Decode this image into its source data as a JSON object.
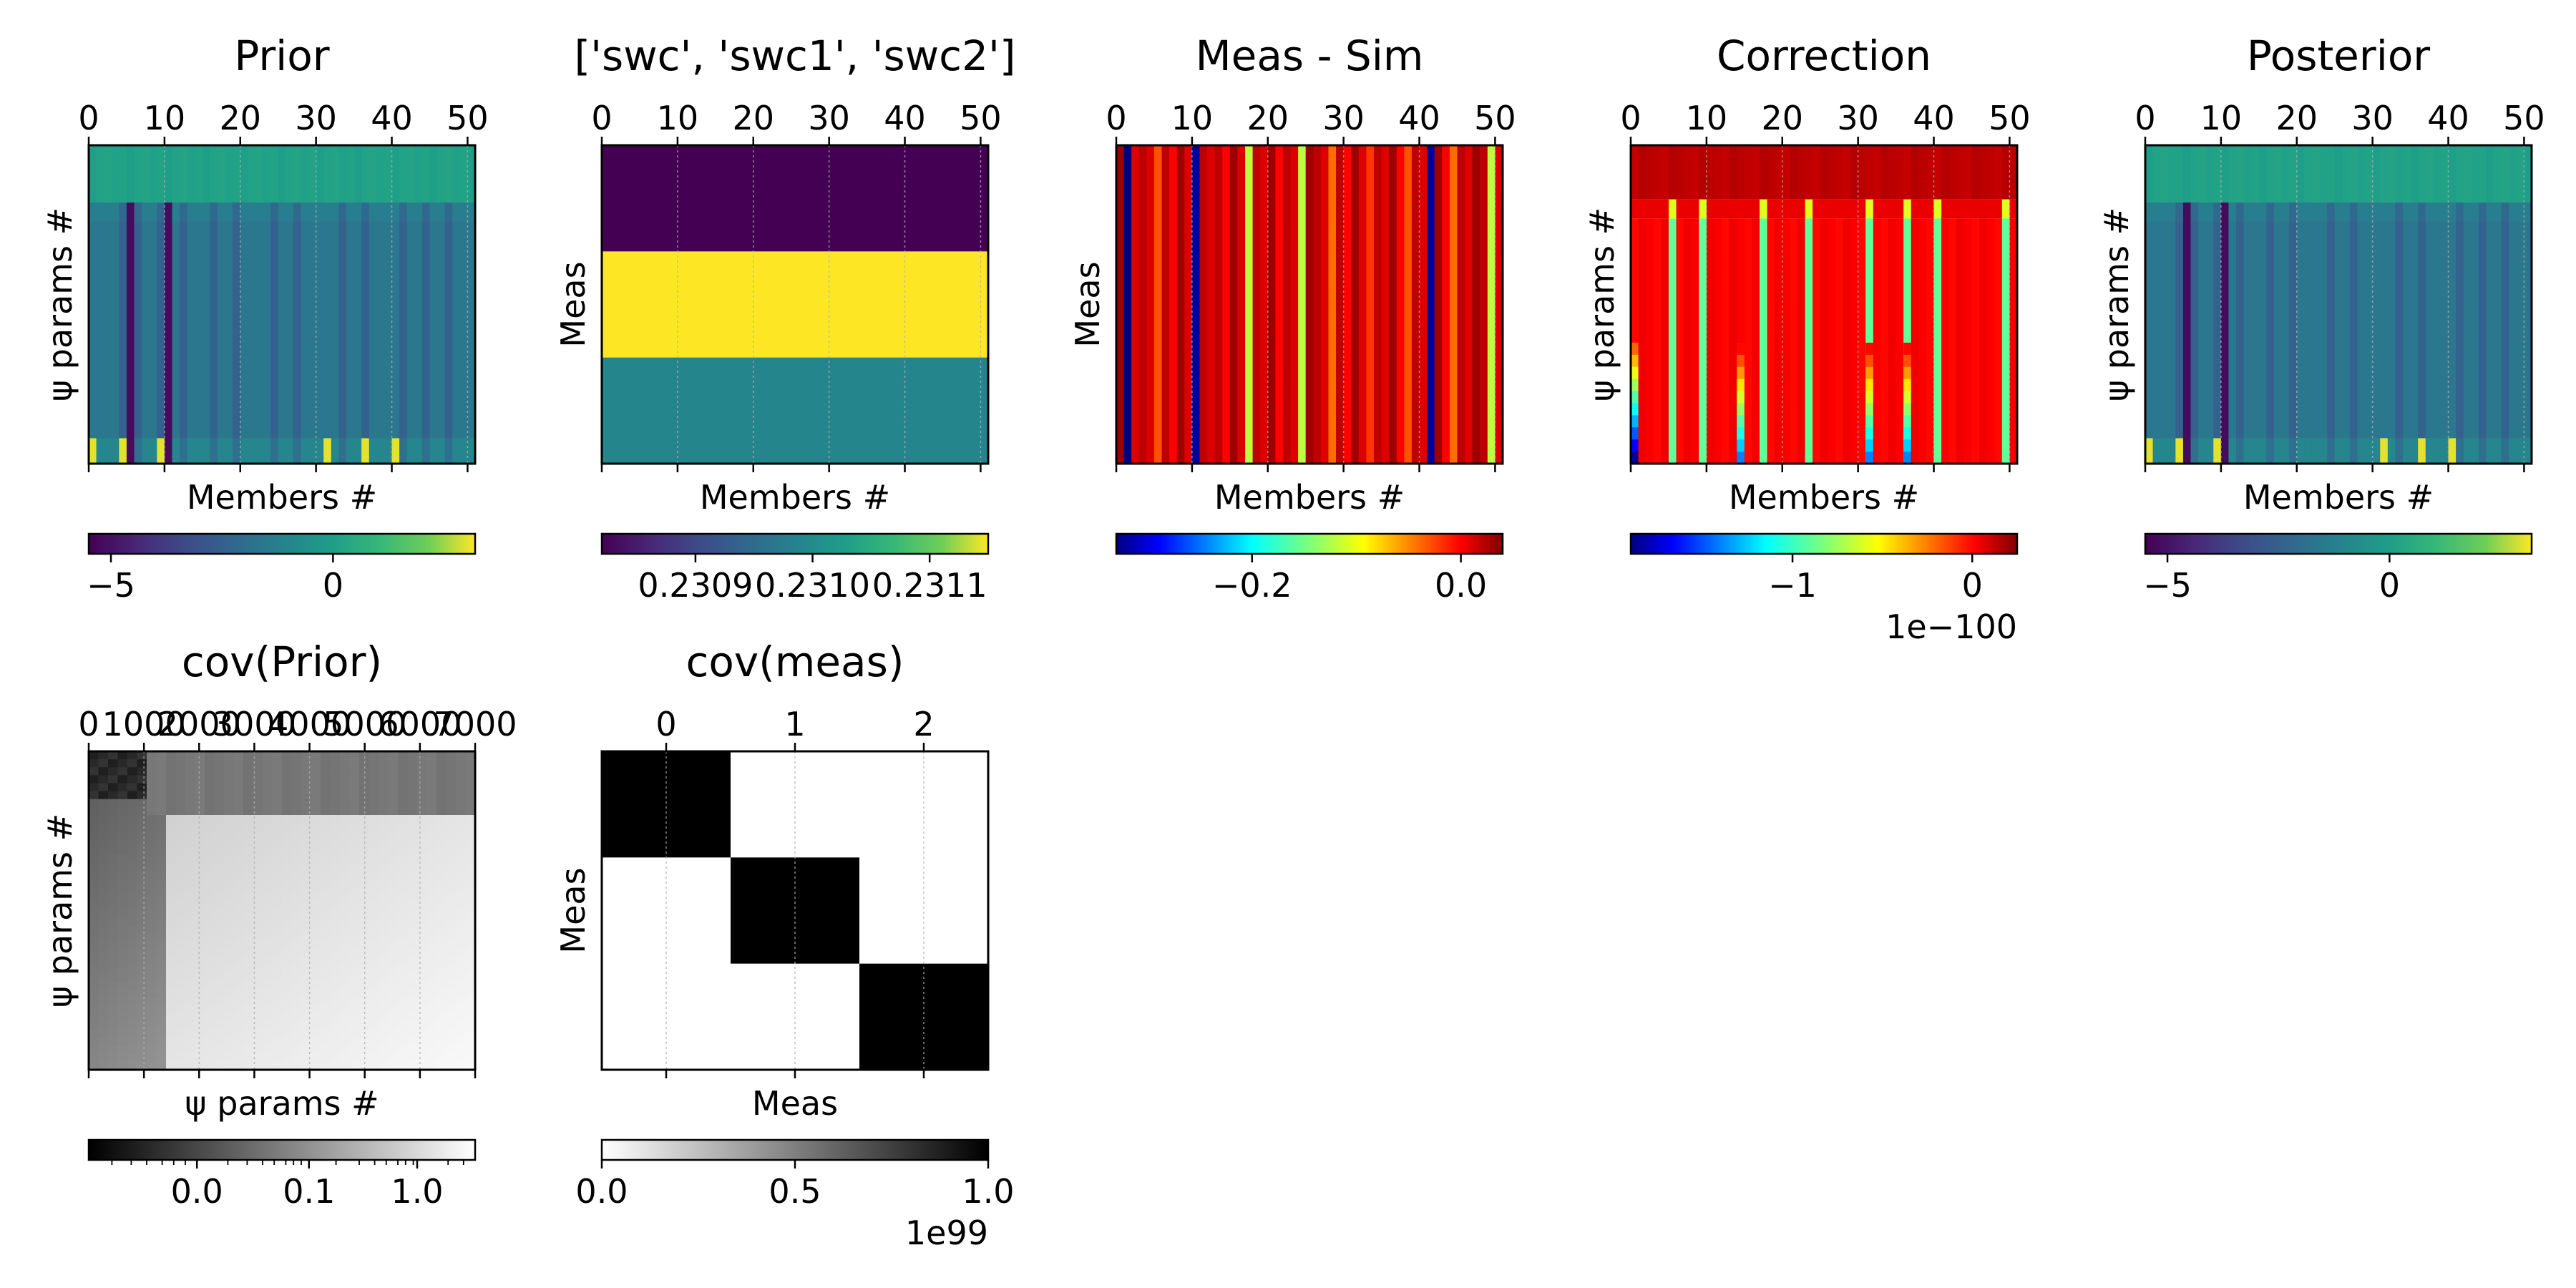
{
  "chart_data": [
    {
      "type": "heatmap",
      "title": "Prior",
      "xlabel": "Members #",
      "ylabel": "ψ params #",
      "x_ticks": [
        "0",
        "10",
        "20",
        "30",
        "40",
        "50"
      ],
      "xlim": [
        0,
        51
      ],
      "colormap": "viridis",
      "colorbar": {
        "ticks": [
          "−5",
          "0"
        ],
        "range": [
          -5.5,
          3.2
        ],
        "offset": ""
      },
      "pattern": {
        "bands": [
          {
            "from": 0.0,
            "to": 0.18,
            "value": 0.0
          },
          {
            "from": 0.18,
            "to": 0.24,
            "value": -1.3
          },
          {
            "from": 0.24,
            "to": 0.92,
            "value": -1.6
          },
          {
            "from": 0.92,
            "to": 1.0,
            "value": -1.0
          }
        ],
        "dark_columns": [
          4,
          5,
          6,
          9,
          10,
          12,
          16,
          19,
          24,
          27,
          33,
          36,
          41,
          44,
          47
        ],
        "very_dark_columns": [
          5,
          10
        ],
        "bright_columns": [
          0,
          4,
          9,
          31,
          36,
          40
        ]
      }
    },
    {
      "type": "heatmap",
      "title": "['swc', 'swc1', 'swc2']",
      "xlabel": "Members #",
      "ylabel": "Meas",
      "x_ticks": [
        "0",
        "10",
        "20",
        "30",
        "40",
        "50"
      ],
      "xlim": [
        0,
        51
      ],
      "colormap": "viridis",
      "colorbar": {
        "ticks": [
          "0.2309",
          "0.2310",
          "0.2311"
        ],
        "range": [
          0.23082,
          0.23115
        ],
        "offset": ""
      },
      "rows": [
        0.23082,
        0.23115,
        0.23099
      ]
    },
    {
      "type": "heatmap",
      "title": "Meas - Sim",
      "xlabel": "Members #",
      "ylabel": "Meas",
      "x_ticks": [
        "0",
        "10",
        "20",
        "30",
        "40",
        "50"
      ],
      "xlim": [
        0,
        51
      ],
      "colormap": "jet",
      "colorbar": {
        "ticks": [
          "−0.2",
          "0.0"
        ],
        "range": [
          -0.33,
          0.04
        ],
        "offset": ""
      },
      "column_values": [
        0.03,
        -0.33,
        0.01,
        0.02,
        0.01,
        -0.03,
        0.02,
        0.0,
        0.03,
        0.01,
        -0.32,
        0.02,
        0.01,
        0.02,
        0.0,
        0.03,
        0.01,
        -0.12,
        0.02,
        0.01,
        0.03,
        0.0,
        0.02,
        0.01,
        -0.12,
        0.03,
        0.02,
        0.01,
        -0.04,
        0.02,
        0.0,
        0.03,
        0.01,
        -0.02,
        0.02,
        0.01,
        0.03,
        0.0,
        -0.03,
        0.02,
        0.01,
        -0.32,
        0.03,
        0.0,
        -0.04,
        0.02,
        0.01,
        0.03,
        0.02,
        -0.12,
        0.01
      ]
    },
    {
      "type": "heatmap",
      "title": "Correction",
      "xlabel": "Members #",
      "ylabel": "ψ params #",
      "x_ticks": [
        "0",
        "10",
        "20",
        "30",
        "40",
        "50"
      ],
      "xlim": [
        0,
        51
      ],
      "colormap": "jet",
      "colorbar": {
        "ticks": [
          "−1",
          "0"
        ],
        "range": [
          -1.9,
          0.25
        ],
        "offset": "1e−100"
      },
      "pattern": {
        "top_value": 0.12,
        "base_value": 0.0,
        "stripe_columns": [
          5,
          9,
          17,
          23,
          31,
          36,
          40,
          49
        ],
        "low_columns": [
          0,
          14,
          31,
          36
        ]
      }
    },
    {
      "type": "heatmap",
      "title": "Posterior",
      "xlabel": "Members #",
      "ylabel": "ψ params #",
      "x_ticks": [
        "0",
        "10",
        "20",
        "30",
        "40",
        "50"
      ],
      "xlim": [
        0,
        51
      ],
      "colormap": "viridis",
      "colorbar": {
        "ticks": [
          "−5",
          "0"
        ],
        "range": [
          -5.5,
          3.2
        ],
        "offset": ""
      },
      "pattern": {
        "bands": [
          {
            "from": 0.0,
            "to": 0.18,
            "value": 0.0
          },
          {
            "from": 0.18,
            "to": 0.24,
            "value": -1.3
          },
          {
            "from": 0.24,
            "to": 0.92,
            "value": -1.6
          },
          {
            "from": 0.92,
            "to": 1.0,
            "value": -1.0
          }
        ],
        "dark_columns": [
          4,
          5,
          6,
          9,
          10,
          12,
          16,
          19,
          24,
          27,
          33,
          36,
          41,
          44,
          47
        ],
        "very_dark_columns": [
          5,
          10
        ],
        "bright_columns": [
          0,
          4,
          9,
          31,
          36,
          40
        ]
      }
    },
    {
      "type": "heatmap",
      "title": "cov(Prior)",
      "xlabel": "ψ params #",
      "ylabel": "ψ params #",
      "x_ticks": [
        "0",
        "1000",
        "2000",
        "3000",
        "4000",
        "5000",
        "6000",
        "7000"
      ],
      "xlim": [
        0,
        7000
      ],
      "colormap": "gray",
      "colorbar": {
        "ticks": [
          "0.0",
          "0.1",
          "1.0"
        ],
        "scale": "symlog",
        "offset": ""
      },
      "pattern": {
        "dark_block_fraction": 0.25,
        "mid_block_fraction": 0.18
      }
    },
    {
      "type": "heatmap",
      "title": "cov(meas)",
      "xlabel": "Meas",
      "ylabel": "Meas",
      "x_ticks": [
        "0",
        "1",
        "2"
      ],
      "xlim": [
        -0.5,
        2.5
      ],
      "colormap": "gray_r",
      "colorbar": {
        "ticks": [
          "0.0",
          "0.5",
          "1.0"
        ],
        "range": [
          0,
          1
        ],
        "offset": "1e99"
      },
      "matrix": [
        [
          1,
          0,
          0
        ],
        [
          0,
          1,
          0
        ],
        [
          0,
          0,
          1
        ]
      ]
    }
  ]
}
